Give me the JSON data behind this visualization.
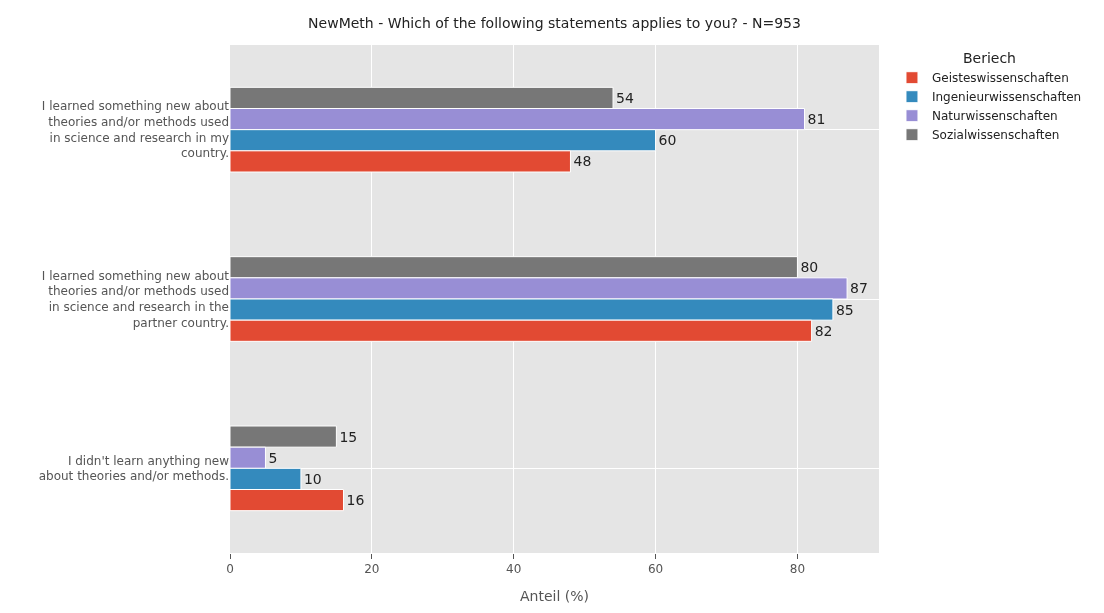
{
  "chart_data": {
    "type": "bar",
    "orientation": "horizontal",
    "title": "NewMeth - Which of the following statements applies to you? - N=953",
    "xlabel": "Anteil (%)",
    "legend_title": "Beriech",
    "categories": [
      "I learned something new about theories and/or methods used in science and research in my country.",
      "I learned something new about theories and/or methods used in science and research in the partner country.",
      "I didn't learn anything new about theories and/or methods."
    ],
    "series": [
      {
        "name": "Geisteswissenschaften",
        "color": "#e24a33",
        "values": [
          48,
          82,
          16
        ]
      },
      {
        "name": "Ingenieurwissenschaften",
        "color": "#348abd",
        "values": [
          60,
          85,
          10
        ]
      },
      {
        "name": "Naturwissenschaften",
        "color": "#988ed5",
        "values": [
          81,
          87,
          5
        ]
      },
      {
        "name": "Sozialwissenschaften",
        "color": "#777777",
        "values": [
          54,
          80,
          15
        ]
      }
    ],
    "xlim": [
      0,
      91.5
    ],
    "xticks": [
      0,
      20,
      40,
      60,
      80
    ],
    "grid": true,
    "legend": "top right",
    "data_labels": true
  }
}
